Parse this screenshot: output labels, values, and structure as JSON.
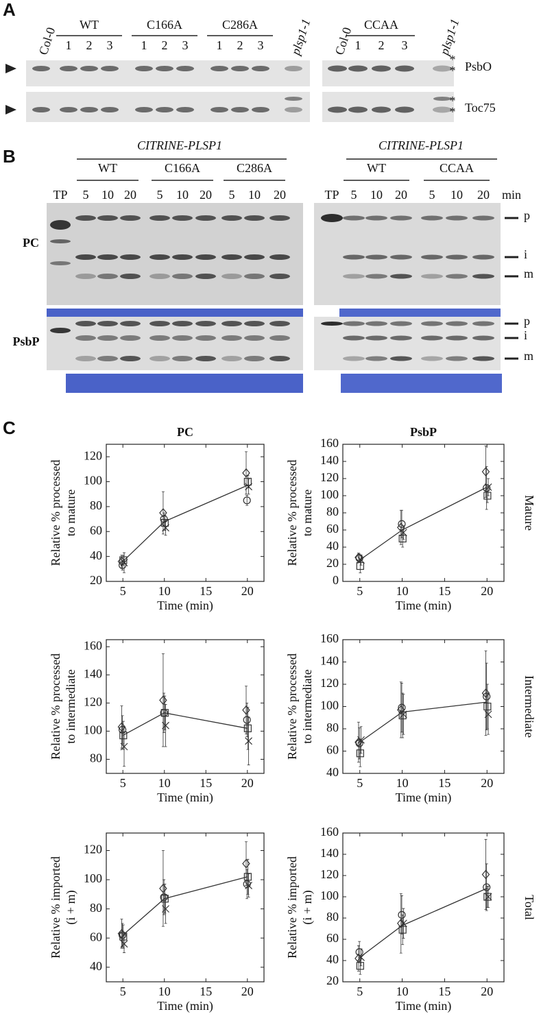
{
  "panel_a": {
    "label": "A",
    "left": {
      "lanes": [
        "Col-0",
        "1",
        "2",
        "3",
        "1",
        "2",
        "3",
        "1",
        "2",
        "3",
        "plsp1-1"
      ],
      "groups": [
        "WT",
        "C166A",
        "C286A"
      ]
    },
    "right": {
      "lanes": [
        "Col-0",
        "1",
        "2",
        "3",
        "plsp1-1"
      ],
      "groups": [
        "CCAA"
      ]
    },
    "blots": [
      {
        "name": "PsbO",
        "marks": [
          "*",
          "*"
        ]
      },
      {
        "name": "Toc75",
        "marks": [
          "*",
          "*"
        ]
      }
    ]
  },
  "panel_b": {
    "label": "B",
    "left": {
      "construct": "CITRINE-PLSP1",
      "groups": [
        "WT",
        "C166A",
        "C286A"
      ],
      "lanes": [
        "TP",
        "5",
        "10",
        "20",
        "5",
        "10",
        "20",
        "5",
        "10",
        "20"
      ]
    },
    "right": {
      "construct": "CITRINE-PLSP1",
      "groups": [
        "WT",
        "CCAA"
      ],
      "lanes": [
        "TP",
        "5",
        "10",
        "20",
        "5",
        "10",
        "20"
      ],
      "unit": "min"
    },
    "rows": [
      "PC",
      "PsbP"
    ],
    "band_labels": [
      [
        "p",
        "i",
        "m"
      ],
      [
        "p",
        "i",
        "m"
      ]
    ]
  },
  "panel_c": {
    "label": "C"
  },
  "chart_data": [
    {
      "type": "line",
      "title": "PC",
      "x_label": "Time (min)",
      "y_label": [
        "Relative % processed",
        "to mature"
      ],
      "x": [
        5,
        10,
        20
      ],
      "xlim": [
        3,
        22
      ],
      "xticks": [
        5,
        10,
        15,
        20
      ],
      "ylim": [
        20,
        130
      ],
      "yticks": [
        20,
        40,
        60,
        80,
        100,
        120
      ],
      "series": [
        {
          "marker": "line",
          "color": "#333333",
          "values": [
            36,
            68,
            97
          ]
        },
        {
          "marker": "diamond",
          "color": "#333333",
          "values": [
            36,
            75,
            107
          ],
          "errors": [
            5,
            17,
            17
          ]
        },
        {
          "marker": "circle",
          "color": "#333333",
          "values": [
            33,
            70,
            85
          ],
          "errors": [
            4,
            5,
            4
          ]
        },
        {
          "marker": "square",
          "color": "#333333",
          "values": [
            37,
            67,
            100
          ],
          "errors": [
            4,
            6,
            5
          ]
        },
        {
          "marker": "x",
          "color": "#333333",
          "values": [
            35,
            63,
            96
          ],
          "errors": [
            8,
            6,
            6
          ]
        }
      ]
    },
    {
      "type": "line",
      "title": "PsbP",
      "row_label": "Mature",
      "x_label": "Time (min)",
      "y_label": [
        "Relative % processed",
        "to mature"
      ],
      "x": [
        5,
        10,
        20
      ],
      "xlim": [
        3,
        22
      ],
      "xticks": [
        5,
        10,
        15,
        20
      ],
      "ylim": [
        0,
        160
      ],
      "yticks": [
        0,
        20,
        40,
        60,
        80,
        100,
        120,
        140,
        160
      ],
      "series": [
        {
          "marker": "line",
          "color": "#333333",
          "values": [
            25,
            60,
            110
          ]
        },
        {
          "marker": "diamond",
          "color": "#333333",
          "values": [
            28,
            63,
            128
          ],
          "errors": [
            5,
            20,
            30
          ]
        },
        {
          "marker": "circle",
          "color": "#333333",
          "values": [
            27,
            67,
            109
          ],
          "errors": [
            5,
            16,
            25
          ]
        },
        {
          "marker": "square",
          "color": "#333333",
          "values": [
            18,
            50,
            100
          ],
          "errors": [
            8,
            10,
            8
          ]
        },
        {
          "marker": "x",
          "color": "#333333",
          "values": [
            25,
            57,
            110
          ],
          "errors": [
            6,
            8,
            10
          ]
        }
      ]
    },
    {
      "type": "line",
      "x_label": "Time (min)",
      "y_label": [
        "Relative % processed",
        "to intermediate"
      ],
      "x": [
        5,
        10,
        20
      ],
      "xlim": [
        3,
        22
      ],
      "xticks": [
        5,
        10,
        15,
        20
      ],
      "ylim": [
        70,
        165
      ],
      "yticks": [
        80,
        100,
        120,
        140,
        160
      ],
      "series": [
        {
          "marker": "line",
          "color": "#333333",
          "values": [
            97,
            113,
            102
          ]
        },
        {
          "marker": "diamond",
          "color": "#333333",
          "values": [
            103,
            122,
            115
          ],
          "errors": [
            15,
            33,
            17
          ]
        },
        {
          "marker": "circle",
          "color": "#333333",
          "values": [
            101,
            113,
            108
          ],
          "errors": [
            10,
            14,
            12
          ]
        },
        {
          "marker": "square",
          "color": "#333333",
          "values": [
            97,
            113,
            102
          ],
          "errors": [
            10,
            12,
            15
          ]
        },
        {
          "marker": "x",
          "color": "#333333",
          "values": [
            89,
            104,
            93
          ],
          "errors": [
            14,
            15,
            17
          ]
        }
      ]
    },
    {
      "type": "line",
      "row_label": "Intermediate",
      "x_label": "Time (min)",
      "y_label": [
        "Relative % processed",
        "to intermediate"
      ],
      "x": [
        5,
        10,
        20
      ],
      "xlim": [
        3,
        22
      ],
      "xticks": [
        5,
        10,
        15,
        20
      ],
      "ylim": [
        40,
        160
      ],
      "yticks": [
        40,
        60,
        80,
        100,
        120,
        140,
        160
      ],
      "series": [
        {
          "marker": "line",
          "color": "#333333",
          "values": [
            68,
            95,
            104
          ]
        },
        {
          "marker": "diamond",
          "color": "#333333",
          "values": [
            68,
            97,
            112
          ],
          "errors": [
            18,
            25,
            38
          ]
        },
        {
          "marker": "circle",
          "color": "#333333",
          "values": [
            67,
            99,
            109
          ],
          "errors": [
            14,
            22,
            30
          ]
        },
        {
          "marker": "square",
          "color": "#333333",
          "values": [
            58,
            92,
            100
          ],
          "errors": [
            12,
            20,
            20
          ]
        },
        {
          "marker": "x",
          "color": "#333333",
          "values": [
            70,
            93,
            93
          ],
          "errors": [
            12,
            18,
            18
          ]
        }
      ]
    },
    {
      "type": "line",
      "x_label": "Time (min)",
      "y_label": [
        "Relative % imported",
        "(i + m)"
      ],
      "x": [
        5,
        10,
        20
      ],
      "xlim": [
        3,
        22
      ],
      "xticks": [
        5,
        10,
        15,
        20
      ],
      "ylim": [
        30,
        132
      ],
      "yticks": [
        40,
        60,
        80,
        100,
        120
      ],
      "series": [
        {
          "marker": "line",
          "color": "#333333",
          "values": [
            62,
            87,
            102
          ]
        },
        {
          "marker": "diamond",
          "color": "#333333",
          "values": [
            63,
            94,
            111
          ],
          "errors": [
            10,
            26,
            15
          ]
        },
        {
          "marker": "circle",
          "color": "#333333",
          "values": [
            62,
            88,
            97
          ],
          "errors": [
            8,
            12,
            10
          ]
        },
        {
          "marker": "square",
          "color": "#333333",
          "values": [
            61,
            87,
            102
          ],
          "errors": [
            8,
            10,
            12
          ]
        },
        {
          "marker": "x",
          "color": "#333333",
          "values": [
            56,
            80,
            96
          ],
          "errors": [
            6,
            10,
            8
          ]
        }
      ]
    },
    {
      "type": "line",
      "row_label": "Total",
      "x_label": "Time (min)",
      "y_label": [
        "Relative % imported",
        "(i + m)"
      ],
      "x": [
        5,
        10,
        20
      ],
      "xlim": [
        3,
        22
      ],
      "xticks": [
        5,
        10,
        15,
        20
      ],
      "ylim": [
        20,
        160
      ],
      "yticks": [
        20,
        40,
        60,
        80,
        100,
        120,
        140,
        160
      ],
      "series": [
        {
          "marker": "line",
          "color": "#333333",
          "values": [
            43,
            73,
            108
          ]
        },
        {
          "marker": "diamond",
          "color": "#333333",
          "values": [
            42,
            75,
            121
          ],
          "errors": [
            12,
            28,
            33
          ]
        },
        {
          "marker": "circle",
          "color": "#333333",
          "values": [
            48,
            83,
            109
          ],
          "errors": [
            10,
            18,
            22
          ]
        },
        {
          "marker": "square",
          "color": "#333333",
          "values": [
            35,
            69,
            100
          ],
          "errors": [
            8,
            14,
            10
          ]
        },
        {
          "marker": "x",
          "color": "#333333",
          "values": [
            43,
            75,
            100
          ],
          "errors": [
            8,
            14,
            10
          ]
        }
      ]
    }
  ]
}
